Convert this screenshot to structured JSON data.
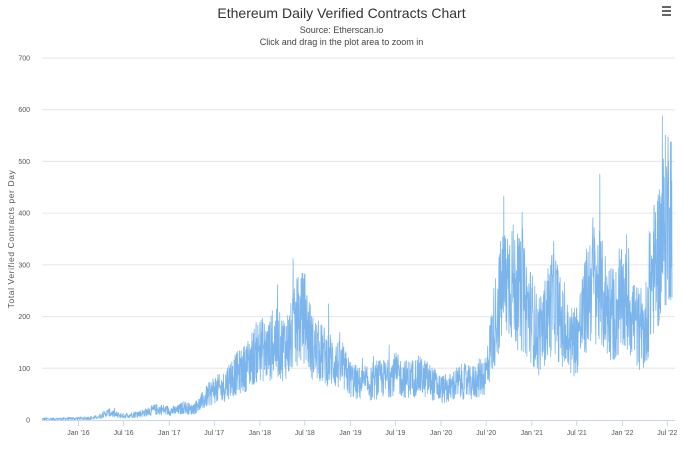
{
  "title": "Ethereum Daily Verified Contracts Chart",
  "subtitle_source": "Source: Etherscan.io",
  "subtitle_hint": "Click and drag in the plot area to zoom in",
  "menu_icon": "hamburger-menu-icon",
  "chart_data": {
    "type": "line",
    "title": "Ethereum Daily Verified Contracts Chart",
    "ylabel": "Total Verified Contracts per Day",
    "xlabel": "",
    "ylim": [
      0,
      700
    ],
    "yticks": [
      0,
      100,
      200,
      300,
      400,
      500,
      600,
      700
    ],
    "ytick_labels": [
      "0",
      "100",
      "200",
      "300",
      "400",
      "500",
      "600",
      "700"
    ],
    "xlim": [
      "2015-08-07",
      "2022-08-01"
    ],
    "xticks": [
      "2016-01-01",
      "2016-07-01",
      "2017-01-01",
      "2017-07-01",
      "2018-01-01",
      "2018-07-01",
      "2019-01-01",
      "2019-07-01",
      "2020-01-01",
      "2020-07-01",
      "2021-01-01",
      "2021-07-01",
      "2022-01-01",
      "2022-07-01"
    ],
    "xtick_labels": [
      "Jan '16",
      "Jul '16",
      "Jan '17",
      "Jul '17",
      "Jan '18",
      "Jul '18",
      "Jan '19",
      "Jul '19",
      "Jan '20",
      "Jul '20",
      "Jan '21",
      "Jul '21",
      "Jan '22",
      "Jul '22"
    ],
    "grid": true,
    "legend": false,
    "line_color": "#7cb5ec",
    "series": [
      {
        "x": [
          "2015-08-07",
          "2015-10-01",
          "2016-01-01",
          "2016-03-01",
          "2016-04-01",
          "2016-05-01",
          "2016-06-01",
          "2016-07-01",
          "2016-08-01",
          "2016-09-01",
          "2016-10-01",
          "2016-11-01",
          "2016-12-01",
          "2017-01-01",
          "2017-02-01",
          "2017-03-01",
          "2017-04-01",
          "2017-05-01",
          "2017-06-01",
          "2017-07-01",
          "2017-08-01",
          "2017-09-01",
          "2017-10-01",
          "2017-11-01",
          "2017-12-01",
          "2018-01-01",
          "2018-02-01",
          "2018-03-01",
          "2018-04-01",
          "2018-05-01",
          "2018-06-01",
          "2018-07-01",
          "2018-08-01",
          "2018-09-01",
          "2018-10-01",
          "2018-11-01",
          "2018-12-01",
          "2019-01-01",
          "2019-02-01",
          "2019-03-01",
          "2019-04-01",
          "2019-05-01",
          "2019-06-01",
          "2019-07-01",
          "2019-08-01",
          "2019-09-01",
          "2019-10-01",
          "2019-11-01",
          "2019-12-01",
          "2020-01-01",
          "2020-02-01",
          "2020-03-01",
          "2020-04-01",
          "2020-05-01",
          "2020-06-01",
          "2020-07-01",
          "2020-08-01",
          "2020-09-01",
          "2020-10-01",
          "2020-11-01",
          "2020-12-01",
          "2021-01-01",
          "2021-02-01",
          "2021-03-01",
          "2021-04-01",
          "2021-05-01",
          "2021-06-01",
          "2021-07-01",
          "2021-08-01",
          "2021-09-01",
          "2021-10-01",
          "2021-11-01",
          "2021-12-01",
          "2022-01-01",
          "2022-02-01",
          "2022-03-01",
          "2022-04-01",
          "2022-05-01",
          "2022-06-01",
          "2022-07-01",
          "2022-07-20"
        ],
        "y": [
          2,
          2,
          3,
          4,
          8,
          15,
          10,
          8,
          10,
          12,
          15,
          20,
          20,
          18,
          18,
          25,
          20,
          30,
          45,
          60,
          60,
          80,
          90,
          100,
          120,
          140,
          130,
          150,
          140,
          150,
          190,
          200,
          140,
          130,
          120,
          110,
          100,
          80,
          70,
          70,
          70,
          80,
          80,
          90,
          80,
          80,
          85,
          80,
          70,
          60,
          60,
          70,
          75,
          70,
          80,
          90,
          180,
          250,
          280,
          250,
          230,
          200,
          150,
          200,
          240,
          180,
          150,
          160,
          210,
          280,
          250,
          220,
          200,
          230,
          220,
          180,
          170,
          280,
          330,
          400,
          420
        ]
      }
    ]
  }
}
